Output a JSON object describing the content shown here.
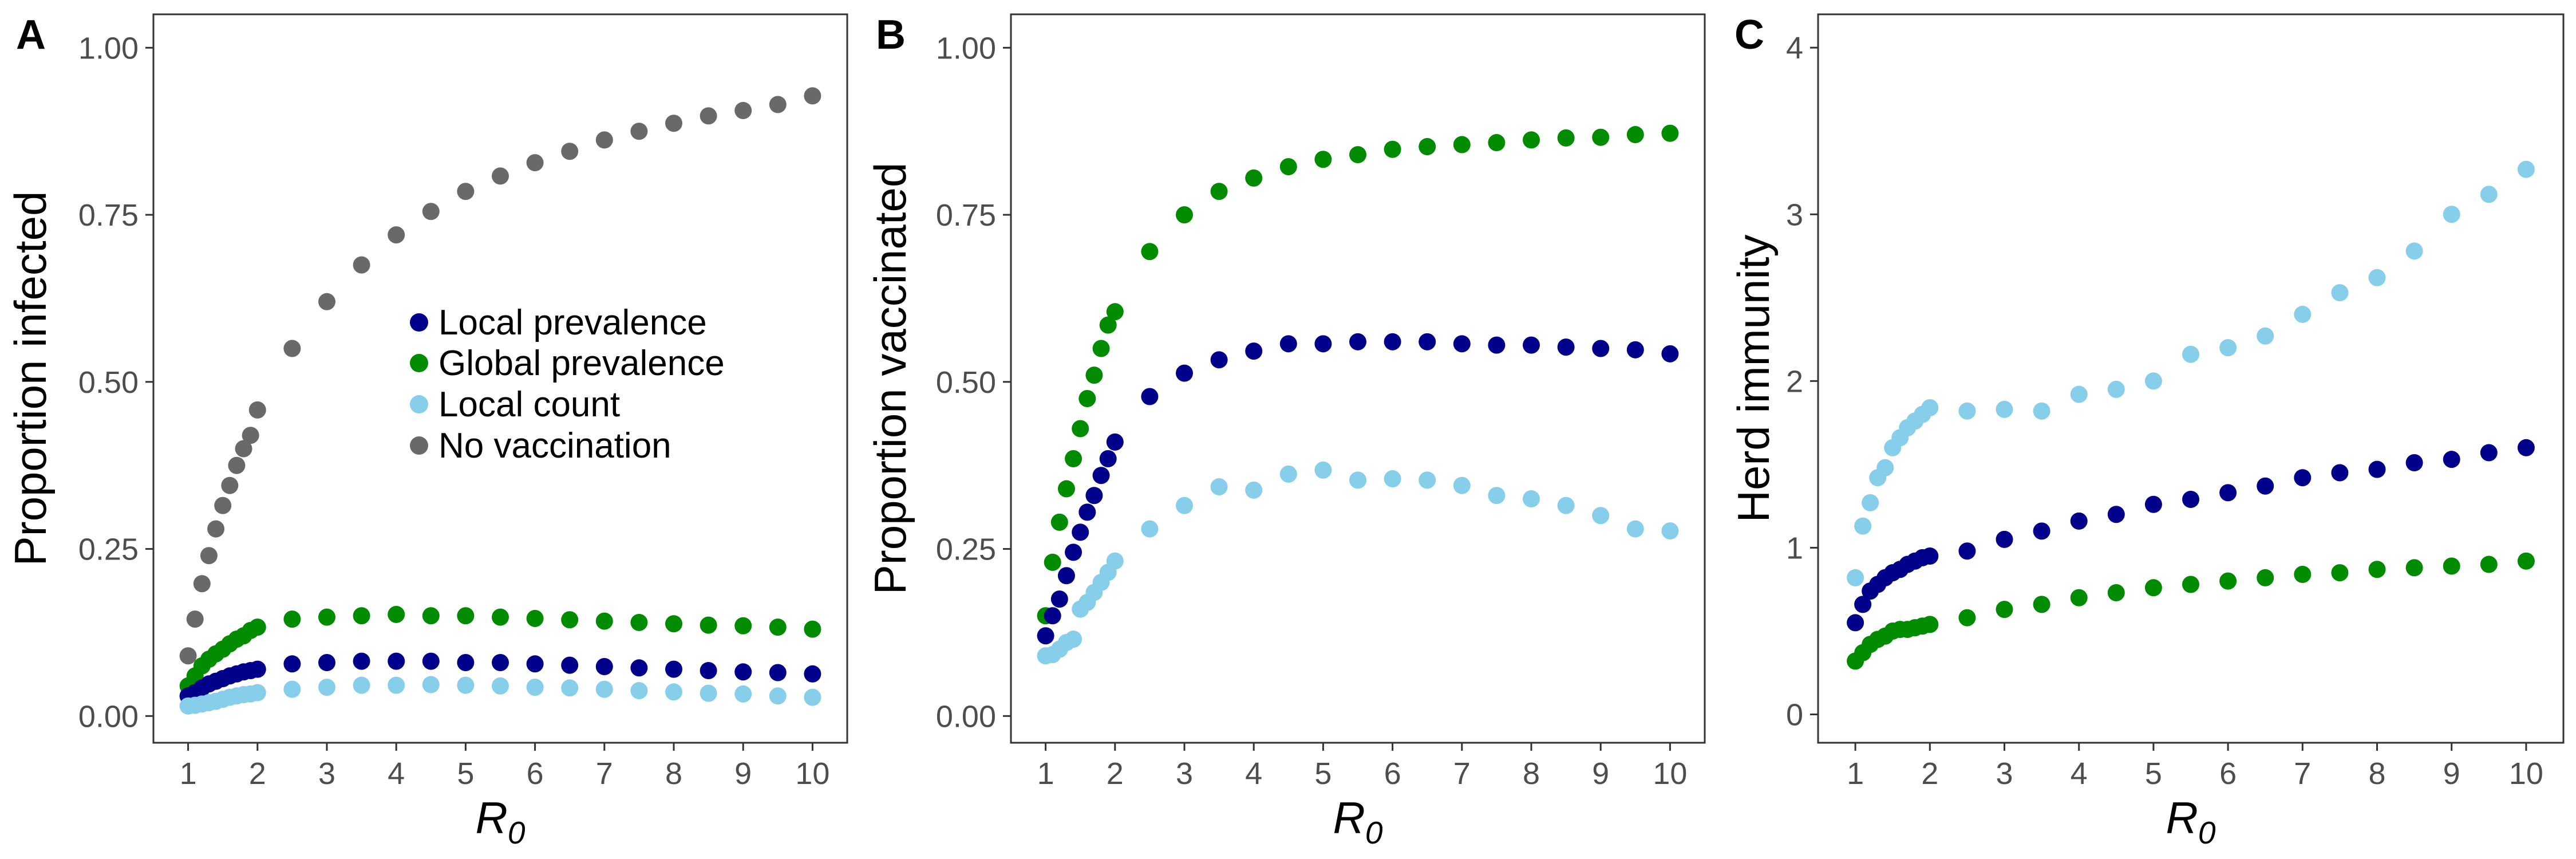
{
  "colors": {
    "local_prevalence": "#00008B",
    "global_prevalence": "#008B00",
    "local_count": "#87CEEB",
    "no_vaccination": "#696969"
  },
  "legend": {
    "local_prevalence": "Local prevalence",
    "global_prevalence": "Global prevalence",
    "local_count": "Local count",
    "no_vaccination": "No vaccination"
  },
  "chart_data": [
    {
      "panel": "A",
      "type": "scatter",
      "xlabel": "R",
      "xlabel_subscript": "0",
      "ylabel": "Proportion infected",
      "xlim": [
        0.5,
        10.5
      ],
      "ylim": [
        -0.04,
        1.05
      ],
      "xticks": [
        1,
        2,
        3,
        4,
        5,
        6,
        7,
        8,
        9,
        10
      ],
      "yticks": [
        0,
        0.25,
        0.5,
        0.75,
        1.0
      ],
      "ytick_labels": [
        "0.00",
        "0.25",
        "0.50",
        "0.75",
        "1.00"
      ],
      "legend_position": "center",
      "x": [
        1.0,
        1.1,
        1.2,
        1.3,
        1.4,
        1.5,
        1.6,
        1.7,
        1.8,
        1.9,
        2.0,
        2.5,
        3.0,
        3.5,
        4.0,
        4.5,
        5.0,
        5.5,
        6.0,
        6.5,
        7.0,
        7.5,
        8.0,
        8.5,
        9.0,
        9.5,
        10.0
      ],
      "series": [
        {
          "name": "No vaccination",
          "key": "no_vaccination",
          "values": [
            0.09,
            0.145,
            0.198,
            0.24,
            0.28,
            0.315,
            0.345,
            0.375,
            0.4,
            0.42,
            0.458,
            0.55,
            0.62,
            0.675,
            0.72,
            0.755,
            0.785,
            0.808,
            0.828,
            0.845,
            0.862,
            0.875,
            0.887,
            0.898,
            0.906,
            0.915,
            0.928
          ]
        },
        {
          "name": "Global prevalence",
          "key": "global_prevalence",
          "values": [
            0.045,
            0.06,
            0.075,
            0.085,
            0.093,
            0.1,
            0.108,
            0.115,
            0.12,
            0.128,
            0.133,
            0.145,
            0.148,
            0.15,
            0.152,
            0.15,
            0.15,
            0.148,
            0.146,
            0.144,
            0.142,
            0.14,
            0.138,
            0.136,
            0.135,
            0.133,
            0.13
          ]
        },
        {
          "name": "Local prevalence",
          "key": "local_prevalence",
          "values": [
            0.03,
            0.035,
            0.042,
            0.048,
            0.052,
            0.056,
            0.06,
            0.063,
            0.066,
            0.068,
            0.07,
            0.078,
            0.08,
            0.082,
            0.082,
            0.082,
            0.08,
            0.08,
            0.078,
            0.076,
            0.074,
            0.072,
            0.07,
            0.068,
            0.066,
            0.065,
            0.063
          ]
        },
        {
          "name": "Local count",
          "key": "local_count",
          "values": [
            0.015,
            0.016,
            0.018,
            0.02,
            0.022,
            0.025,
            0.028,
            0.03,
            0.032,
            0.033,
            0.035,
            0.04,
            0.043,
            0.046,
            0.046,
            0.047,
            0.046,
            0.045,
            0.043,
            0.042,
            0.04,
            0.038,
            0.036,
            0.034,
            0.033,
            0.03,
            0.028
          ]
        }
      ]
    },
    {
      "panel": "B",
      "type": "scatter",
      "xlabel": "R",
      "xlabel_subscript": "0",
      "ylabel": "Proportion vaccinated",
      "xlim": [
        0.5,
        10.5
      ],
      "ylim": [
        -0.04,
        1.05
      ],
      "xticks": [
        1,
        2,
        3,
        4,
        5,
        6,
        7,
        8,
        9,
        10
      ],
      "yticks": [
        0,
        0.25,
        0.5,
        0.75,
        1.0
      ],
      "ytick_labels": [
        "0.00",
        "0.25",
        "0.50",
        "0.75",
        "1.00"
      ],
      "x": [
        1.0,
        1.1,
        1.2,
        1.3,
        1.4,
        1.5,
        1.6,
        1.7,
        1.8,
        1.9,
        2.0,
        2.5,
        3.0,
        3.5,
        4.0,
        4.5,
        5.0,
        5.5,
        6.0,
        6.5,
        7.0,
        7.5,
        8.0,
        8.5,
        9.0,
        9.5,
        10.0
      ],
      "series": [
        {
          "name": "Global prevalence",
          "key": "global_prevalence",
          "values": [
            0.15,
            0.23,
            0.29,
            0.34,
            0.385,
            0.43,
            0.475,
            0.51,
            0.55,
            0.585,
            0.605,
            0.695,
            0.75,
            0.785,
            0.805,
            0.822,
            0.833,
            0.84,
            0.848,
            0.852,
            0.855,
            0.858,
            0.862,
            0.865,
            0.866,
            0.87,
            0.872
          ]
        },
        {
          "name": "Local prevalence",
          "key": "local_prevalence",
          "values": [
            0.12,
            0.15,
            0.175,
            0.21,
            0.245,
            0.275,
            0.305,
            0.33,
            0.36,
            0.385,
            0.41,
            0.478,
            0.513,
            0.533,
            0.546,
            0.557,
            0.557,
            0.56,
            0.56,
            0.56,
            0.557,
            0.555,
            0.555,
            0.552,
            0.55,
            0.548,
            0.542
          ]
        },
        {
          "name": "Local count",
          "key": "local_count",
          "values": [
            0.09,
            0.092,
            0.1,
            0.11,
            0.115,
            0.16,
            0.17,
            0.185,
            0.2,
            0.215,
            0.232,
            0.28,
            0.315,
            0.343,
            0.338,
            0.362,
            0.368,
            0.353,
            0.355,
            0.353,
            0.345,
            0.33,
            0.325,
            0.315,
            0.3,
            0.28,
            0.277
          ]
        }
      ]
    },
    {
      "panel": "C",
      "type": "scatter",
      "xlabel": "R",
      "xlabel_subscript": "0",
      "ylabel": "Herd immunity",
      "xlim": [
        0.5,
        10.5
      ],
      "ylim": [
        -0.17,
        4.2
      ],
      "xticks": [
        1,
        2,
        3,
        4,
        5,
        6,
        7,
        8,
        9,
        10
      ],
      "yticks": [
        0,
        1,
        2,
        3,
        4
      ],
      "ytick_labels": [
        "0",
        "1",
        "2",
        "3",
        "4"
      ],
      "x": [
        1.0,
        1.1,
        1.2,
        1.3,
        1.4,
        1.5,
        1.6,
        1.7,
        1.8,
        1.9,
        2.0,
        2.5,
        3.0,
        3.5,
        4.0,
        4.5,
        5.0,
        5.5,
        6.0,
        6.5,
        7.0,
        7.5,
        8.0,
        8.5,
        9.0,
        9.5,
        10.0
      ],
      "series": [
        {
          "name": "Local count",
          "key": "local_count",
          "values": [
            0.82,
            1.13,
            1.27,
            1.42,
            1.48,
            1.6,
            1.66,
            1.72,
            1.76,
            1.8,
            1.84,
            1.82,
            1.83,
            1.82,
            1.92,
            1.95,
            2.0,
            2.16,
            2.2,
            2.27,
            2.4,
            2.53,
            2.62,
            2.78,
            3.0,
            3.12,
            3.27
          ]
        },
        {
          "name": "Local prevalence",
          "key": "local_prevalence",
          "values": [
            0.55,
            0.66,
            0.74,
            0.78,
            0.82,
            0.85,
            0.87,
            0.9,
            0.92,
            0.94,
            0.95,
            0.98,
            1.05,
            1.1,
            1.16,
            1.2,
            1.26,
            1.29,
            1.33,
            1.37,
            1.42,
            1.45,
            1.47,
            1.51,
            1.53,
            1.57,
            1.6
          ]
        },
        {
          "name": "Global prevalence",
          "key": "global_prevalence",
          "values": [
            0.32,
            0.37,
            0.42,
            0.45,
            0.47,
            0.5,
            0.51,
            0.51,
            0.52,
            0.53,
            0.54,
            0.58,
            0.63,
            0.66,
            0.7,
            0.73,
            0.76,
            0.78,
            0.8,
            0.82,
            0.84,
            0.85,
            0.87,
            0.88,
            0.89,
            0.9,
            0.92
          ]
        }
      ]
    }
  ]
}
